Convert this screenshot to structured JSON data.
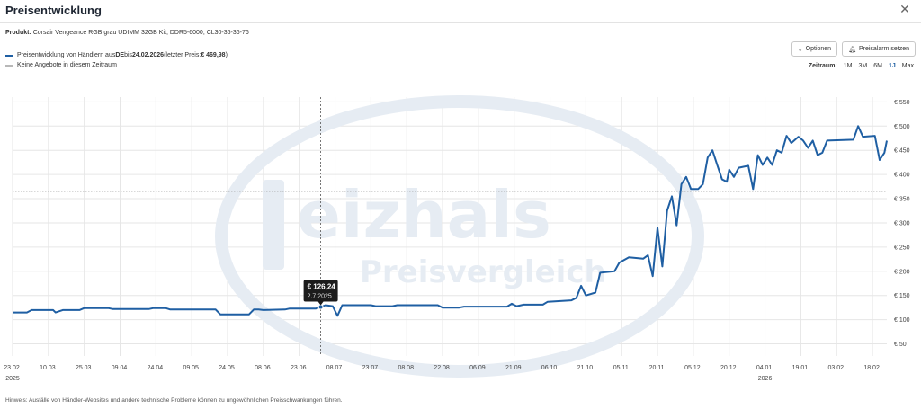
{
  "header": {
    "title": "Preisentwicklung",
    "close_icon": "close-icon"
  },
  "product": {
    "label": "Produkt:",
    "name": "Corsair Vengeance RGB grau UDIMM 32GB Kit, DDR5-6000, CL30-36-36-76"
  },
  "legend": {
    "item1_pre": "Preisentwicklung von Händlern aus ",
    "item1_country": "DE",
    "item1_mid": " bis ",
    "item1_date": "24.02.2026",
    "item1_paren": " (letzter Preis: ",
    "item1_price": "€ 469,98",
    "item1_close": ")",
    "item2": "Keine Angebote in diesem Zeitraum"
  },
  "buttons": {
    "options": "Optionen",
    "options_icon": "chevron-down-icon",
    "alarm": "Preisalarm setzen",
    "alarm_icon": "bell-icon"
  },
  "zeitraum": {
    "label": "Zeitraum:",
    "options": [
      "1M",
      "3M",
      "6M",
      "1J",
      "Max"
    ],
    "active": "1J"
  },
  "watermark": {
    "brand": "eizhals",
    "sub": "Preisvergleich"
  },
  "tooltip": {
    "price": "€ 126,24",
    "date": "2.7.2025"
  },
  "note": "Hinweis: Ausfälle von Händler-Websites und andere technische Probleme können zu ungewöhnlichen Preisschwankungen führen.",
  "colors": {
    "line": "#1f5fa3",
    "grid": "#e6e6e6",
    "ref_line": "#999999",
    "tooltip_bg": "#1b1b1b",
    "watermark": "#e6ecf3"
  },
  "chart_data": {
    "type": "line",
    "x_tick_labels": [
      "23.02.",
      "10.03.",
      "25.03.",
      "09.04.",
      "24.04.",
      "09.05.",
      "24.05.",
      "08.06.",
      "23.06.",
      "08.07.",
      "23.07.",
      "08.08.",
      "22.08.",
      "06.09.",
      "21.09.",
      "06.10.",
      "21.10.",
      "05.11.",
      "20.11.",
      "05.12.",
      "20.12.",
      "04.01.",
      "19.01.",
      "03.02.",
      "18.02."
    ],
    "x_year_labels": [
      {
        "at": "23.02.",
        "year": "2025"
      },
      {
        "at": "04.01.",
        "year": "2026"
      }
    ],
    "x_start_date": "2025-02-23",
    "x_end_date": "2026-02-24",
    "y_ticks": [
      50,
      100,
      150,
      200,
      250,
      300,
      350,
      400,
      450,
      500,
      550
    ],
    "y_tick_labels": [
      "€ 50",
      "€ 100",
      "€ 150",
      "€ 200",
      "€ 250",
      "€ 300",
      "€ 350",
      "€ 400",
      "€ 450",
      "€ 500",
      "€ 550"
    ],
    "ylim": [
      25,
      560
    ],
    "reference_line": 365,
    "grid": true,
    "highlight": {
      "date": "2025-07-02",
      "value": 126.24
    },
    "series": [
      {
        "points": [
          [
            "2025-02-23",
            115
          ],
          [
            "2025-03-01",
            115
          ],
          [
            "2025-03-03",
            120
          ],
          [
            "2025-03-12",
            120
          ],
          [
            "2025-03-13",
            115
          ],
          [
            "2025-03-16",
            120
          ],
          [
            "2025-03-23",
            120
          ],
          [
            "2025-03-25",
            124
          ],
          [
            "2025-04-04",
            124
          ],
          [
            "2025-04-06",
            122
          ],
          [
            "2025-04-21",
            122
          ],
          [
            "2025-04-23",
            124
          ],
          [
            "2025-04-28",
            124
          ],
          [
            "2025-04-30",
            121
          ],
          [
            "2025-05-19",
            121
          ],
          [
            "2025-05-21",
            111
          ],
          [
            "2025-06-02",
            111
          ],
          [
            "2025-06-04",
            121
          ],
          [
            "2025-06-06",
            121
          ],
          [
            "2025-06-08",
            120
          ],
          [
            "2025-06-17",
            121
          ],
          [
            "2025-06-19",
            123
          ],
          [
            "2025-06-30",
            123
          ],
          [
            "2025-07-02",
            126.24
          ],
          [
            "2025-07-04",
            130
          ],
          [
            "2025-07-07",
            128
          ],
          [
            "2025-07-09",
            108
          ],
          [
            "2025-07-11",
            130
          ],
          [
            "2025-07-23",
            130
          ],
          [
            "2025-07-25",
            128
          ],
          [
            "2025-08-01",
            128
          ],
          [
            "2025-08-03",
            130
          ],
          [
            "2025-08-20",
            130
          ],
          [
            "2025-08-22",
            125
          ],
          [
            "2025-08-29",
            125
          ],
          [
            "2025-08-31",
            127
          ],
          [
            "2025-09-18",
            127
          ],
          [
            "2025-09-20",
            133
          ],
          [
            "2025-09-22",
            128
          ],
          [
            "2025-09-25",
            131
          ],
          [
            "2025-10-03",
            131
          ],
          [
            "2025-10-05",
            137
          ],
          [
            "2025-10-15",
            140
          ],
          [
            "2025-10-17",
            145
          ],
          [
            "2025-10-19",
            170
          ],
          [
            "2025-10-21",
            150
          ],
          [
            "2025-10-25",
            156
          ],
          [
            "2025-10-27",
            197
          ],
          [
            "2025-11-02",
            200
          ],
          [
            "2025-11-04",
            218
          ],
          [
            "2025-11-08",
            229
          ],
          [
            "2025-11-14",
            226
          ],
          [
            "2025-11-16",
            233
          ],
          [
            "2025-11-18",
            190
          ],
          [
            "2025-11-20",
            290
          ],
          [
            "2025-11-22",
            210
          ],
          [
            "2025-11-24",
            325
          ],
          [
            "2025-11-26",
            355
          ],
          [
            "2025-11-28",
            295
          ],
          [
            "2025-11-30",
            380
          ],
          [
            "2025-12-02",
            395
          ],
          [
            "2025-12-04",
            370
          ],
          [
            "2025-12-07",
            370
          ],
          [
            "2025-12-09",
            380
          ],
          [
            "2025-12-11",
            435
          ],
          [
            "2025-12-13",
            450
          ],
          [
            "2025-12-15",
            420
          ],
          [
            "2025-12-17",
            390
          ],
          [
            "2025-12-19",
            385
          ],
          [
            "2025-12-20",
            410
          ],
          [
            "2025-12-22",
            395
          ],
          [
            "2025-12-24",
            414
          ],
          [
            "2025-12-28",
            418
          ],
          [
            "2025-12-30",
            370
          ],
          [
            "2026-01-01",
            440
          ],
          [
            "2026-01-03",
            420
          ],
          [
            "2026-01-05",
            435
          ],
          [
            "2026-01-07",
            420
          ],
          [
            "2026-01-09",
            450
          ],
          [
            "2026-01-11",
            445
          ],
          [
            "2026-01-13",
            480
          ],
          [
            "2026-01-15",
            465
          ],
          [
            "2026-01-18",
            478
          ],
          [
            "2026-01-20",
            470
          ],
          [
            "2026-01-22",
            455
          ],
          [
            "2026-01-24",
            470
          ],
          [
            "2026-01-26",
            440
          ],
          [
            "2026-01-28",
            445
          ],
          [
            "2026-01-30",
            470
          ],
          [
            "2026-02-10",
            472
          ],
          [
            "2026-02-12",
            500
          ],
          [
            "2026-02-14",
            478
          ],
          [
            "2026-02-19",
            480
          ],
          [
            "2026-02-21",
            430
          ],
          [
            "2026-02-23",
            445
          ],
          [
            "2026-02-24",
            469.98
          ]
        ]
      }
    ]
  }
}
